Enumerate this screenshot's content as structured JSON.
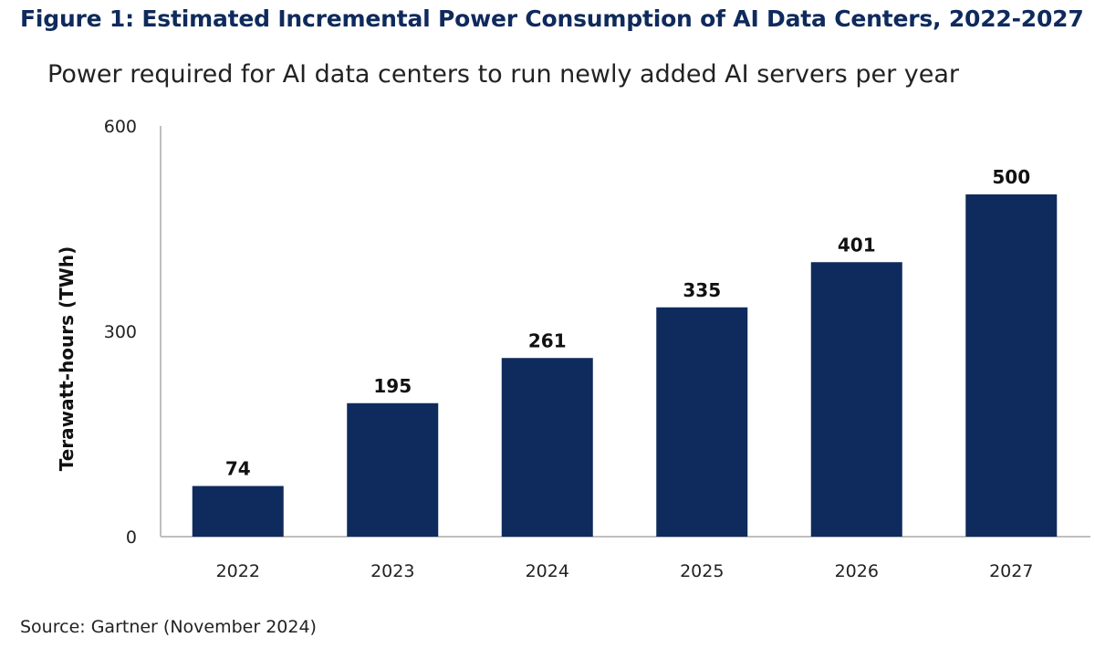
{
  "figure_title": "Figure 1: Estimated Incremental Power Consumption of AI Data Centers, 2022-2027",
  "source": "Source: Gartner (November 2024)",
  "colors": {
    "bar": "#0f2a5c",
    "title": "#0f2a5c",
    "axis": "#bfbfbf"
  },
  "chart_data": {
    "type": "bar",
    "title": "Power required for AI data centers to run newly added AI servers per year",
    "xlabel": "",
    "ylabel": "Terawatt-hours (TWh)",
    "categories": [
      "2022",
      "2023",
      "2024",
      "2025",
      "2026",
      "2027"
    ],
    "values": [
      74,
      195,
      261,
      335,
      401,
      500
    ],
    "ylim": [
      0,
      600
    ],
    "yticks": [
      0,
      300,
      600
    ],
    "grid": false,
    "legend": "none"
  }
}
